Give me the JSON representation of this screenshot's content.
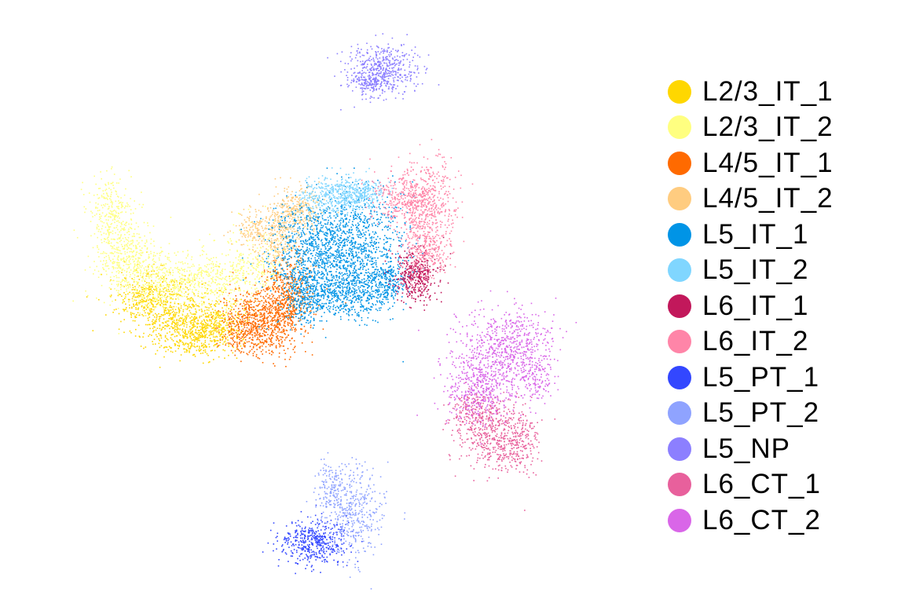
{
  "chart_data": {
    "type": "scatter",
    "title": "",
    "xlabel": "",
    "ylabel": "",
    "axes_visible": false,
    "grid": false,
    "legend_position": "right",
    "series": [
      {
        "name": "L2/3_IT_1",
        "color": "#FFD700",
        "approx_points": 1300
      },
      {
        "name": "L2/3_IT_2",
        "color": "#FFFF80",
        "approx_points": 1600
      },
      {
        "name": "L4/5_IT_1",
        "color": "#FF6A00",
        "approx_points": 1300
      },
      {
        "name": "L4/5_IT_2",
        "color": "#FFCC80",
        "approx_points": 700
      },
      {
        "name": "L5_IT_1",
        "color": "#0094E6",
        "approx_points": 2600
      },
      {
        "name": "L5_IT_2",
        "color": "#80D6FF",
        "approx_points": 600
      },
      {
        "name": "L6_IT_1",
        "color": "#C2185B",
        "approx_points": 400
      },
      {
        "name": "L6_IT_2",
        "color": "#FF85A8",
        "approx_points": 1000
      },
      {
        "name": "L5_PT_1",
        "color": "#3347FF",
        "approx_points": 450
      },
      {
        "name": "L5_PT_2",
        "color": "#8FA3FF",
        "approx_points": 550
      },
      {
        "name": "L5_NP",
        "color": "#8C7FFF",
        "approx_points": 600
      },
      {
        "name": "L6_CT_1",
        "color": "#E8609C",
        "approx_points": 800
      },
      {
        "name": "L6_CT_2",
        "color": "#D966E8",
        "approx_points": 1200
      }
    ]
  }
}
